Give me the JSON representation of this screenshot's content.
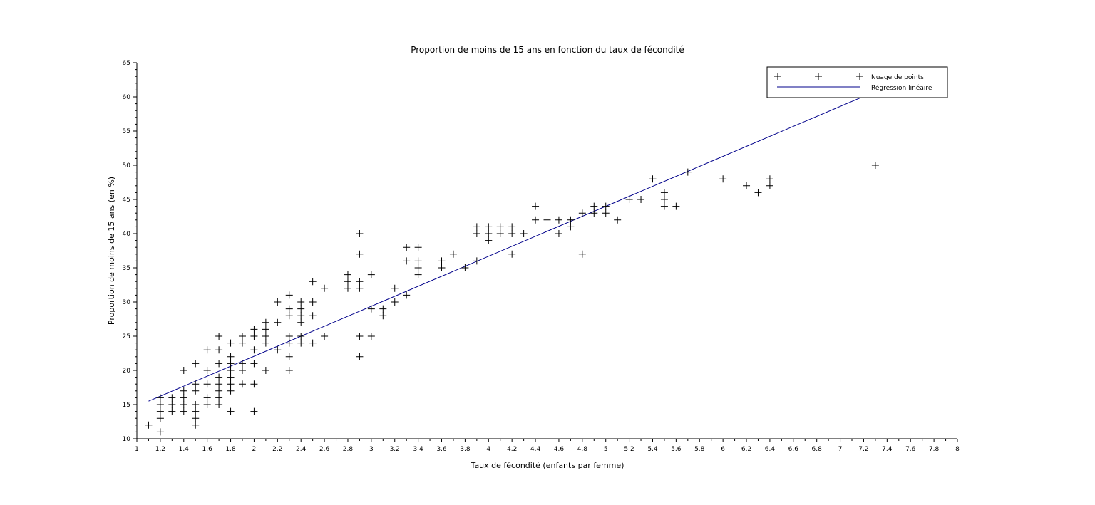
{
  "chart_data": {
    "type": "scatter",
    "title": "Proportion de moins de 15 ans en fonction du taux de fécondité",
    "xlabel": "Taux de fécondité (enfants par femme)",
    "ylabel": "Proportion de moins de 15 ans (en %)",
    "xlim": [
      1,
      8
    ],
    "ylim": [
      10,
      65
    ],
    "xticks": [
      "1",
      "1.2",
      "1.4",
      "1.6",
      "1.8",
      "2",
      "2.2",
      "2.4",
      "2.6",
      "2.8",
      "3",
      "3.2",
      "3.4",
      "3.6",
      "3.8",
      "4",
      "4.2",
      "4.4",
      "4.6",
      "4.8",
      "5",
      "5.2",
      "5.4",
      "5.6",
      "5.8",
      "6",
      "6.2",
      "6.4",
      "6.6",
      "6.8",
      "7",
      "7.2",
      "7.4",
      "7.6",
      "7.8",
      "8"
    ],
    "yticks": [
      "10",
      "15",
      "20",
      "25",
      "30",
      "35",
      "40",
      "45",
      "50",
      "55",
      "60",
      "65"
    ],
    "legend_position": "top-right",
    "grid": false,
    "series": [
      {
        "name": "Nuage de points",
        "type": "scatter",
        "marker": "+",
        "color": "#000000",
        "points": [
          [
            1.1,
            12
          ],
          [
            1.2,
            16
          ],
          [
            1.2,
            15
          ],
          [
            1.2,
            14
          ],
          [
            1.2,
            13
          ],
          [
            1.2,
            11
          ],
          [
            1.3,
            16
          ],
          [
            1.3,
            15
          ],
          [
            1.3,
            14
          ],
          [
            1.4,
            20
          ],
          [
            1.4,
            17
          ],
          [
            1.4,
            16
          ],
          [
            1.4,
            15
          ],
          [
            1.4,
            14
          ],
          [
            1.5,
            21
          ],
          [
            1.5,
            18
          ],
          [
            1.5,
            17
          ],
          [
            1.5,
            15
          ],
          [
            1.5,
            14
          ],
          [
            1.5,
            13
          ],
          [
            1.5,
            12
          ],
          [
            1.6,
            23
          ],
          [
            1.6,
            20
          ],
          [
            1.6,
            18
          ],
          [
            1.6,
            16
          ],
          [
            1.6,
            15
          ],
          [
            1.7,
            25
          ],
          [
            1.7,
            23
          ],
          [
            1.7,
            21
          ],
          [
            1.7,
            19
          ],
          [
            1.7,
            18
          ],
          [
            1.7,
            17
          ],
          [
            1.7,
            16
          ],
          [
            1.7,
            15
          ],
          [
            1.8,
            24
          ],
          [
            1.8,
            22
          ],
          [
            1.8,
            21
          ],
          [
            1.8,
            20
          ],
          [
            1.8,
            19
          ],
          [
            1.8,
            18
          ],
          [
            1.8,
            17
          ],
          [
            1.8,
            14
          ],
          [
            1.9,
            25
          ],
          [
            1.9,
            24
          ],
          [
            1.9,
            21
          ],
          [
            1.9,
            20
          ],
          [
            1.9,
            18
          ],
          [
            2.0,
            26
          ],
          [
            2.0,
            25
          ],
          [
            2.0,
            23
          ],
          [
            2.0,
            21
          ],
          [
            2.0,
            18
          ],
          [
            2.0,
            14
          ],
          [
            2.1,
            27
          ],
          [
            2.1,
            26
          ],
          [
            2.1,
            25
          ],
          [
            2.1,
            24
          ],
          [
            2.1,
            20
          ],
          [
            2.2,
            30
          ],
          [
            2.2,
            27
          ],
          [
            2.2,
            23
          ],
          [
            2.3,
            31
          ],
          [
            2.3,
            29
          ],
          [
            2.3,
            28
          ],
          [
            2.3,
            25
          ],
          [
            2.3,
            24
          ],
          [
            2.3,
            22
          ],
          [
            2.3,
            20
          ],
          [
            2.4,
            30
          ],
          [
            2.4,
            29
          ],
          [
            2.4,
            28
          ],
          [
            2.4,
            27
          ],
          [
            2.4,
            25
          ],
          [
            2.4,
            24
          ],
          [
            2.5,
            33
          ],
          [
            2.5,
            30
          ],
          [
            2.5,
            28
          ],
          [
            2.5,
            24
          ],
          [
            2.6,
            32
          ],
          [
            2.6,
            25
          ],
          [
            2.8,
            34
          ],
          [
            2.8,
            33
          ],
          [
            2.8,
            32
          ],
          [
            2.9,
            40
          ],
          [
            2.9,
            37
          ],
          [
            2.9,
            33
          ],
          [
            2.9,
            32
          ],
          [
            2.9,
            25
          ],
          [
            2.9,
            22
          ],
          [
            3.0,
            34
          ],
          [
            3.0,
            29
          ],
          [
            3.0,
            25
          ],
          [
            3.1,
            29
          ],
          [
            3.1,
            28
          ],
          [
            3.2,
            32
          ],
          [
            3.2,
            30
          ],
          [
            3.3,
            38
          ],
          [
            3.3,
            36
          ],
          [
            3.3,
            31
          ],
          [
            3.4,
            38
          ],
          [
            3.4,
            36
          ],
          [
            3.4,
            35
          ],
          [
            3.4,
            34
          ],
          [
            3.6,
            36
          ],
          [
            3.6,
            35
          ],
          [
            3.7,
            37
          ],
          [
            3.8,
            35
          ],
          [
            3.9,
            41
          ],
          [
            3.9,
            40
          ],
          [
            3.9,
            36
          ],
          [
            4.0,
            41
          ],
          [
            4.0,
            40
          ],
          [
            4.0,
            39
          ],
          [
            4.1,
            41
          ],
          [
            4.1,
            40
          ],
          [
            4.2,
            41
          ],
          [
            4.2,
            40
          ],
          [
            4.2,
            37
          ],
          [
            4.3,
            40
          ],
          [
            4.4,
            44
          ],
          [
            4.4,
            42
          ],
          [
            4.5,
            42
          ],
          [
            4.6,
            42
          ],
          [
            4.6,
            40
          ],
          [
            4.7,
            42
          ],
          [
            4.7,
            41
          ],
          [
            4.8,
            43
          ],
          [
            4.8,
            37
          ],
          [
            4.9,
            44
          ],
          [
            4.9,
            43
          ],
          [
            5.0,
            44
          ],
          [
            5.0,
            43
          ],
          [
            5.1,
            42
          ],
          [
            5.2,
            45
          ],
          [
            5.3,
            45
          ],
          [
            5.4,
            48
          ],
          [
            5.5,
            46
          ],
          [
            5.5,
            45
          ],
          [
            5.5,
            44
          ],
          [
            5.6,
            44
          ],
          [
            5.7,
            49
          ],
          [
            6.0,
            48
          ],
          [
            6.2,
            47
          ],
          [
            6.3,
            46
          ],
          [
            6.4,
            48
          ],
          [
            6.4,
            47
          ],
          [
            7.3,
            50
          ]
        ]
      },
      {
        "name": "Régression linéaire",
        "type": "line",
        "color": "#00008b",
        "points": [
          [
            1.1,
            15.5
          ],
          [
            7.3,
            60.8
          ]
        ]
      }
    ]
  }
}
